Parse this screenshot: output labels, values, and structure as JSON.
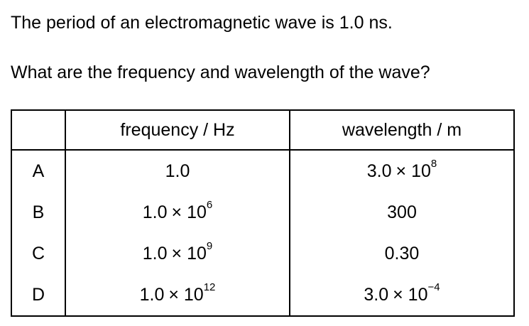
{
  "question": {
    "line1": "The period of an electromagnetic wave is 1.0 ns.",
    "line2": "What are the frequency and wavelength of the wave?"
  },
  "table": {
    "headers": [
      "",
      "frequency / Hz",
      "wavelength / m"
    ],
    "rows": [
      {
        "letter": "A",
        "frequency": {
          "mantissa": "1.0",
          "exponent": ""
        },
        "wavelength": {
          "mantissa": "3.0",
          "exponent": "8"
        }
      },
      {
        "letter": "B",
        "frequency": {
          "mantissa": "1.0",
          "exponent": "6"
        },
        "wavelength": {
          "mantissa": "300",
          "exponent": ""
        }
      },
      {
        "letter": "C",
        "frequency": {
          "mantissa": "1.0",
          "exponent": "9"
        },
        "wavelength": {
          "mantissa": "0.30",
          "exponent": ""
        }
      },
      {
        "letter": "D",
        "frequency": {
          "mantissa": "1.0",
          "exponent": "12"
        },
        "wavelength": {
          "mantissa": "3.0",
          "exponent": "−4"
        }
      }
    ]
  }
}
